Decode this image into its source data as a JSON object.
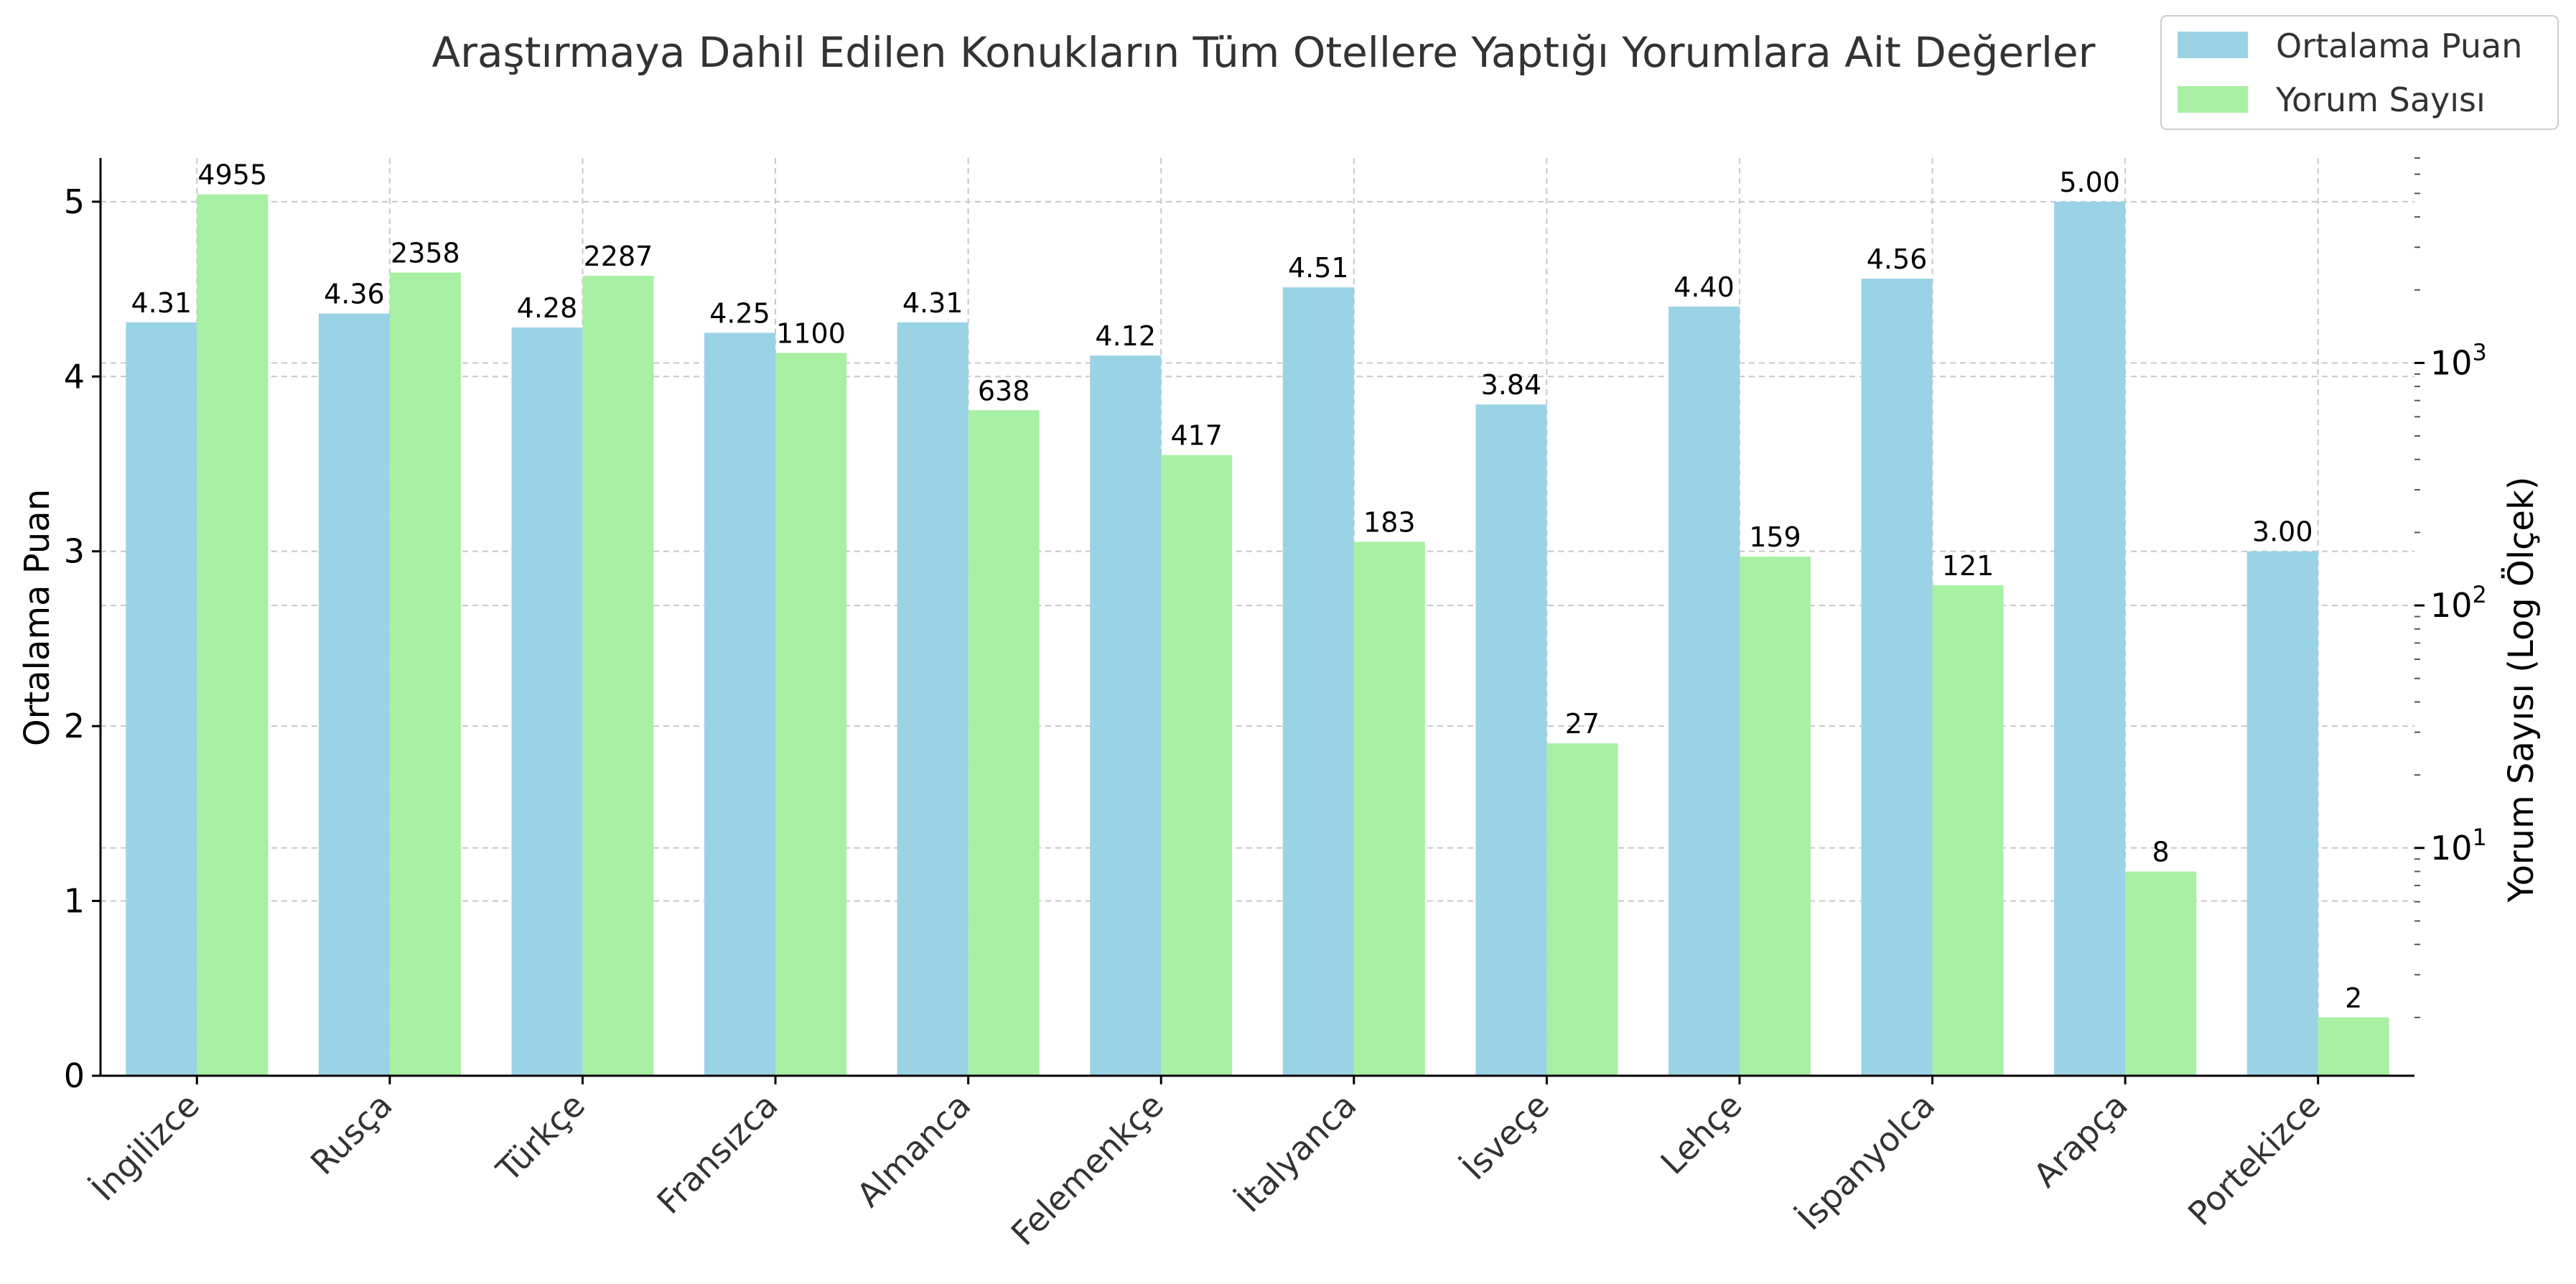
{
  "chart_data": {
    "type": "bar",
    "title": "Araştırmaya Dahil Edilen Konukların Tüm Otellere Yaptığı Yorumlara Ait Değerler",
    "categories": [
      "İngilizce",
      "Rusça",
      "Türkçe",
      "Fransızca",
      "Almanca",
      "Felemenkçe",
      "İtalyanca",
      "İsveçe",
      "Lehçe",
      "İspanyolca",
      "Arapça",
      "Portekizce"
    ],
    "series": [
      {
        "name": "Ortalama Puan",
        "axis": "left",
        "color": "#9ad3e6",
        "values": [
          4.31,
          4.36,
          4.28,
          4.25,
          4.31,
          4.12,
          4.51,
          3.84,
          4.4,
          4.56,
          5.0,
          3.0
        ],
        "labels": [
          "4.31",
          "4.36",
          "4.28",
          "4.25",
          "4.31",
          "4.12",
          "4.51",
          "3.84",
          "4.40",
          "4.56",
          "5.00",
          "3.00"
        ]
      },
      {
        "name": "Yorum Sayısı",
        "axis": "right",
        "color": "#a8f0a4",
        "values": [
          4955,
          2358,
          2287,
          1100,
          638,
          417,
          183,
          27,
          159,
          121,
          8,
          2
        ],
        "labels": [
          "4955",
          "2358",
          "2287",
          "1100",
          "638",
          "417",
          "183",
          "27",
          "159",
          "121",
          "8",
          "2"
        ]
      }
    ],
    "ylabel": "Ortalama Puan",
    "ylim": [
      0,
      5.25
    ],
    "yticks": [
      0,
      1,
      2,
      3,
      4,
      5
    ],
    "y2label": "Yorum Sayısı (Log Ölçek)",
    "y2scale": "log",
    "y2lim": [
      1.15,
      7000
    ],
    "y2ticks": [
      {
        "value": 10,
        "base": "10",
        "exp": "1"
      },
      {
        "value": 100,
        "base": "10",
        "exp": "2"
      },
      {
        "value": 1000,
        "base": "10",
        "exp": "3"
      }
    ],
    "grid": true,
    "legend_position": "top-right"
  }
}
